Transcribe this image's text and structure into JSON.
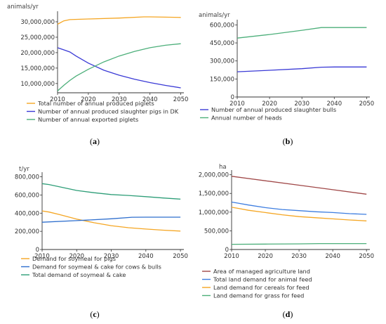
{
  "chart_data": [
    {
      "id": "a",
      "type": "line",
      "caption": "a",
      "unit": "animals/yr",
      "x_ticks": [
        2010,
        2020,
        2030,
        2040,
        2050
      ],
      "y_ticks": [
        10000000,
        15000000,
        20000000,
        25000000,
        30000000
      ],
      "y_tick_labels": [
        "10,000,000",
        "15,000,000",
        "20,000,000",
        "25,000,000",
        "30,000,000"
      ],
      "xlim": [
        2010,
        2051
      ],
      "ylim": [
        7000000,
        32500000
      ],
      "series": [
        {
          "name": "Total number of annual produced piglets",
          "color": "#f5a623",
          "x": [
            2010,
            2012,
            2014,
            2020,
            2030,
            2038,
            2040,
            2045,
            2050
          ],
          "y": [
            29200000,
            30300000,
            30700000,
            30900000,
            31200000,
            31600000,
            31600000,
            31500000,
            31400000
          ]
        },
        {
          "name": "Number of annual produced slaughter pigs in DK",
          "color": "#3a3ad6",
          "x": [
            2010,
            2012,
            2014,
            2016,
            2020,
            2025,
            2030,
            2035,
            2040,
            2045,
            2050
          ],
          "y": [
            21600000,
            20900000,
            20200000,
            18900000,
            16600000,
            14300000,
            12700000,
            11400000,
            10300000,
            9400000,
            8600000
          ]
        },
        {
          "name": "Number of annual exported piglets",
          "color": "#4caf7a",
          "x": [
            2010,
            2012,
            2014,
            2016,
            2020,
            2025,
            2030,
            2035,
            2040,
            2045,
            2050
          ],
          "y": [
            7600000,
            9400000,
            11000000,
            12400000,
            14600000,
            17000000,
            18900000,
            20400000,
            21600000,
            22400000,
            22900000
          ]
        }
      ]
    },
    {
      "id": "b",
      "type": "line",
      "caption": "b",
      "unit": "animals/yr",
      "x_ticks": [
        2010,
        2020,
        2030,
        2040,
        2050
      ],
      "y_ticks": [
        0,
        150000,
        300000,
        450000,
        600000
      ],
      "y_tick_labels": [
        "0",
        "150,000",
        "300,000",
        "450,000",
        "600,000"
      ],
      "xlim": [
        2010,
        2051
      ],
      "ylim": [
        0,
        620000
      ],
      "series": [
        {
          "name": "Number of annual produced slaughter bulls",
          "color": "#3a3ad6",
          "x": [
            2010,
            2020,
            2030,
            2036,
            2040,
            2050
          ],
          "y": [
            210000,
            222000,
            236000,
            248000,
            250000,
            250000
          ]
        },
        {
          "name": "Annual number of heads",
          "color": "#4caf7a",
          "x": [
            2010,
            2020,
            2030,
            2036,
            2040,
            2050
          ],
          "y": [
            490000,
            520000,
            555000,
            578000,
            578000,
            578000
          ]
        }
      ]
    },
    {
      "id": "c",
      "type": "line",
      "caption": "c",
      "unit": "t/yr",
      "x_ticks": [
        2010,
        2020,
        2030,
        2040,
        2050
      ],
      "y_ticks": [
        0,
        200000,
        400000,
        600000,
        800000
      ],
      "y_tick_labels": [
        "0",
        "200,000",
        "400,000",
        "600,000",
        "800,000"
      ],
      "xlim": [
        2010,
        2051
      ],
      "ylim": [
        0,
        820000
      ],
      "series": [
        {
          "name": "Demand for soymeal for pigs",
          "color": "#f5a623",
          "x": [
            2010,
            2012,
            2015,
            2020,
            2025,
            2030,
            2035,
            2040,
            2045,
            2050
          ],
          "y": [
            425000,
            412000,
            385000,
            335000,
            295000,
            262000,
            240000,
            225000,
            213000,
            203000
          ]
        },
        {
          "name": "Demand for soymeal & cake for cows & bulls",
          "color": "#2f6fce",
          "x": [
            2010,
            2020,
            2030,
            2036,
            2040,
            2050
          ],
          "y": [
            300000,
            318000,
            338000,
            355000,
            356000,
            356000
          ]
        },
        {
          "name": "Total demand of soymeal & cake",
          "color": "#2e9e78",
          "x": [
            2010,
            2012,
            2015,
            2020,
            2025,
            2030,
            2035,
            2040,
            2045,
            2050
          ],
          "y": [
            725000,
            715000,
            690000,
            650000,
            625000,
            605000,
            595000,
            582000,
            567000,
            555000
          ]
        }
      ]
    },
    {
      "id": "d",
      "type": "line",
      "caption": "d",
      "unit": "ha",
      "x_ticks": [
        2010,
        2020,
        2030,
        2040,
        2050
      ],
      "y_ticks": [
        0,
        500000,
        1000000,
        1500000,
        2000000
      ],
      "y_tick_labels": [
        "0",
        "500,000",
        "1,000,000",
        "1,500,000",
        "2,000,000"
      ],
      "xlim": [
        2010,
        2051
      ],
      "ylim": [
        0,
        2050000
      ],
      "series": [
        {
          "name": "Area of managed agriculture land",
          "color": "#a04848",
          "x": [
            2010,
            2020,
            2030,
            2040,
            2050
          ],
          "y": [
            1960000,
            1840000,
            1720000,
            1600000,
            1480000
          ]
        },
        {
          "name": "Total land demand for animal feed",
          "color": "#3d7de0",
          "x": [
            2010,
            2012,
            2015,
            2020,
            2025,
            2030,
            2035,
            2040,
            2045,
            2050
          ],
          "y": [
            1270000,
            1240000,
            1190000,
            1120000,
            1070000,
            1040000,
            1010000,
            990000,
            960000,
            940000
          ]
        },
        {
          "name": "Land demand for cereals for feed",
          "color": "#f5a623",
          "x": [
            2010,
            2012,
            2015,
            2020,
            2025,
            2030,
            2035,
            2040,
            2045,
            2050
          ],
          "y": [
            1130000,
            1100000,
            1050000,
            990000,
            930000,
            880000,
            850000,
            820000,
            790000,
            765000
          ]
        },
        {
          "name": "Land demand for grass for feed",
          "color": "#4caf7a",
          "x": [
            2010,
            2020,
            2030,
            2036,
            2040,
            2050
          ],
          "y": [
            140000,
            145000,
            150000,
            158000,
            158000,
            158000
          ]
        }
      ]
    }
  ]
}
